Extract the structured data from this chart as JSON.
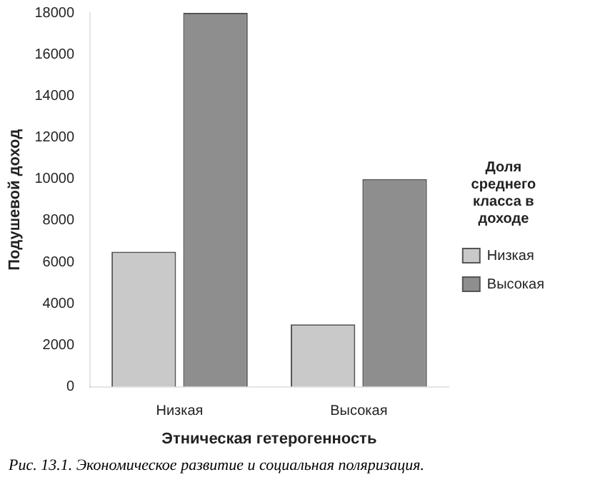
{
  "chart_data": {
    "type": "bar",
    "xlabel": "Этническая гетерогенность",
    "ylabel": "Подушевой доход",
    "legend_title": "Доля среднего класса в доходе",
    "categories": [
      "Низкая",
      "Высокая"
    ],
    "series": [
      {
        "name": "Низкая",
        "color": "#c9c9c9",
        "values": [
          6500,
          3000
        ]
      },
      {
        "name": "Высокая",
        "color": "#8e8e8e",
        "values": [
          18000,
          10000
        ]
      }
    ],
    "ylim": [
      0,
      18000
    ],
    "yticks": [
      0,
      2000,
      4000,
      6000,
      8000,
      10000,
      12000,
      14000,
      16000,
      18000
    ],
    "grid": false,
    "legend": "right",
    "annotations": [
      "Рис. 13.1. Экономическое развитие и социальная поляризация."
    ]
  }
}
